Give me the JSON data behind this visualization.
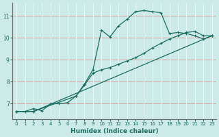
{
  "xlabel": "Humidex (Indice chaleur)",
  "background_color": "#cceae8",
  "line_color": "#1a6b60",
  "grid_color_h": "#d4a0a0",
  "grid_color_v": "#e8f8f8",
  "xlim": [
    -0.5,
    23.5
  ],
  "ylim": [
    6.3,
    11.6
  ],
  "yticks": [
    7,
    8,
    9,
    10,
    11
  ],
  "xticks": [
    0,
    1,
    2,
    3,
    4,
    5,
    6,
    7,
    8,
    9,
    10,
    11,
    12,
    13,
    14,
    15,
    16,
    17,
    18,
    19,
    20,
    21,
    22,
    23
  ],
  "line1_x": [
    0,
    1,
    2,
    3,
    4,
    5,
    6,
    7,
    8,
    9,
    10,
    11,
    12,
    13,
    14,
    15,
    16,
    17,
    18,
    19,
    20,
    21,
    22,
    23
  ],
  "line1_y": [
    6.65,
    6.65,
    6.78,
    6.68,
    7.0,
    7.0,
    7.05,
    7.35,
    7.9,
    8.55,
    10.35,
    10.05,
    10.55,
    10.85,
    11.2,
    11.25,
    11.2,
    11.15,
    10.2,
    10.25,
    10.2,
    10.1,
    9.95,
    10.1
  ],
  "line2_x": [
    0,
    2,
    7,
    8,
    9,
    10,
    11,
    12,
    13,
    14,
    15,
    16,
    17,
    18,
    19,
    20,
    21,
    22,
    23
  ],
  "line2_y": [
    6.65,
    6.65,
    7.35,
    7.85,
    8.4,
    8.55,
    8.65,
    8.8,
    8.95,
    9.1,
    9.3,
    9.55,
    9.75,
    9.95,
    10.1,
    10.25,
    10.3,
    10.1,
    10.1
  ],
  "line3_x": [
    0,
    2,
    23
  ],
  "line3_y": [
    6.65,
    6.65,
    10.1
  ]
}
